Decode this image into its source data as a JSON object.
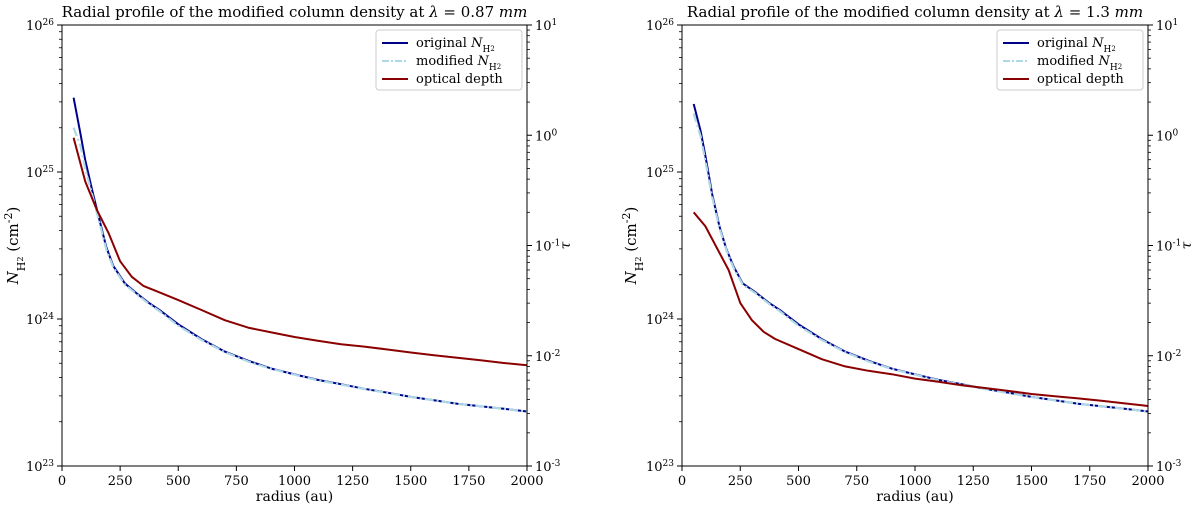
{
  "chart_data": [
    {
      "type": "line",
      "title": "Radial profile of the modified column density at λ = 0.87 mm",
      "title_prefix": "Radial profile of the modified column density at ",
      "title_lambda": "λ",
      "title_eq": " = 0.87 ",
      "title_unit": "mm",
      "xlabel": "radius (au)",
      "ylabel_left": "N_H2 (cm^-2)",
      "ylabel_right": "τ",
      "xlim": [
        0,
        2000
      ],
      "xticks": [
        0,
        250,
        500,
        750,
        1000,
        1250,
        1500,
        1750,
        2000
      ],
      "ylim_left": [
        1e+23,
        1e+26
      ],
      "ylim_right": [
        0.001,
        10
      ],
      "yticks_left": [
        "10^23",
        "10^24",
        "10^25",
        "10^26"
      ],
      "yticks_right": [
        "10^-3",
        "10^-2",
        "10^-1",
        "10^0",
        "10^1"
      ],
      "yscale": "log",
      "legend_position": "top-right",
      "legend": [
        "original N_H2",
        "modified N_H2",
        "optical depth"
      ],
      "series": [
        {
          "name": "original N_H2",
          "axis": "left",
          "color": "#00008b",
          "style": "solid",
          "x": [
            50,
            80,
            100,
            130,
            160,
            190,
            220,
            270,
            320,
            370,
            420,
            500,
            600,
            700,
            800,
            900,
            1000,
            1100,
            1200,
            1300,
            1400,
            1500,
            1600,
            1700,
            1800,
            1900,
            2000
          ],
          "y": [
            3.2e+25,
            1.8e+25,
            1.2e+25,
            7.5e+24,
            4.8e+24,
            3.1e+24,
            2.3e+24,
            1.75e+24,
            1.5e+24,
            1.3e+24,
            1.15e+24,
            9.2e+23,
            7.3e+23,
            6e+23,
            5.2e+23,
            4.6e+23,
            4.2e+23,
            3.85e+23,
            3.6e+23,
            3.35e+23,
            3.15e+23,
            2.95e+23,
            2.8e+23,
            2.65e+23,
            2.55e+23,
            2.45e+23,
            2.35e+23
          ]
        },
        {
          "name": "modified N_H2",
          "axis": "left",
          "color": "#add8e6",
          "style": "dashdot",
          "x": [
            50,
            80,
            100,
            130,
            160,
            190,
            220,
            270,
            320,
            370,
            420,
            500,
            600,
            700,
            800,
            900,
            1000,
            1100,
            1200,
            1300,
            1400,
            1500,
            1600,
            1700,
            1800,
            1900,
            2000
          ],
          "y": [
            2e+25,
            1.5e+25,
            1.05e+25,
            7e+24,
            4.6e+24,
            3e+24,
            2.25e+24,
            1.72e+24,
            1.48e+24,
            1.28e+24,
            1.13e+24,
            9e+23,
            7.2e+23,
            5.95e+23,
            5.15e+23,
            4.58e+23,
            4.18e+23,
            3.83e+23,
            3.58e+23,
            3.34e+23,
            3.14e+23,
            2.95e+23,
            2.8e+23,
            2.65e+23,
            2.55e+23,
            2.45e+23,
            2.35e+23
          ]
        },
        {
          "name": "optical depth",
          "axis": "right",
          "color": "#8b0000",
          "style": "solid",
          "x": [
            50,
            100,
            150,
            200,
            250,
            300,
            350,
            400,
            500,
            600,
            700,
            800,
            900,
            1000,
            1100,
            1200,
            1300,
            1400,
            1500,
            1600,
            1700,
            1800,
            1900,
            2000
          ],
          "y": [
            0.95,
            0.38,
            0.21,
            0.13,
            0.072,
            0.052,
            0.043,
            0.039,
            0.032,
            0.026,
            0.021,
            0.018,
            0.0163,
            0.0148,
            0.0137,
            0.0127,
            0.0121,
            0.0114,
            0.0107,
            0.0101,
            0.0096,
            0.0091,
            0.0086,
            0.0082
          ]
        }
      ]
    },
    {
      "type": "line",
      "title": "Radial profile of the modified column density at λ = 1.3 mm",
      "title_prefix": "Radial profile of the modified column density at ",
      "title_lambda": "λ",
      "title_eq": " = 1.3 ",
      "title_unit": "mm",
      "xlabel": "radius (au)",
      "ylabel_left": "N_H2 (cm^-2)",
      "ylabel_right": "τ",
      "xlim": [
        0,
        2000
      ],
      "xticks": [
        0,
        250,
        500,
        750,
        1000,
        1250,
        1500,
        1750,
        2000
      ],
      "ylim_left": [
        1e+23,
        1e+26
      ],
      "ylim_right": [
        0.001,
        10
      ],
      "yticks_left": [
        "10^23",
        "10^24",
        "10^25",
        "10^26"
      ],
      "yticks_right": [
        "10^-3",
        "10^-2",
        "10^-1",
        "10^0",
        "10^1"
      ],
      "yscale": "log",
      "legend_position": "top-right",
      "legend": [
        "original N_H2",
        "modified N_H2",
        "optical depth"
      ],
      "series": [
        {
          "name": "original N_H2",
          "axis": "left",
          "color": "#00008b",
          "style": "solid",
          "x": [
            50,
            80,
            100,
            130,
            160,
            190,
            220,
            260,
            320,
            370,
            420,
            500,
            600,
            700,
            800,
            900,
            1000,
            1100,
            1200,
            1300,
            1400,
            1500,
            1600,
            1700,
            1800,
            1900,
            2000
          ],
          "y": [
            2.9e+25,
            1.9e+25,
            1.3e+25,
            7e+24,
            4.3e+24,
            3e+24,
            2.3e+24,
            1.75e+24,
            1.5e+24,
            1.3e+24,
            1.15e+24,
            9.2e+23,
            7.3e+23,
            6e+23,
            5.2e+23,
            4.6e+23,
            4.2e+23,
            3.85e+23,
            3.6e+23,
            3.35e+23,
            3.15e+23,
            2.95e+23,
            2.8e+23,
            2.65e+23,
            2.55e+23,
            2.45e+23,
            2.35e+23
          ]
        },
        {
          "name": "modified N_H2",
          "axis": "left",
          "color": "#add8e6",
          "style": "dashdot",
          "x": [
            50,
            80,
            100,
            130,
            160,
            190,
            220,
            260,
            320,
            370,
            420,
            500,
            600,
            700,
            800,
            900,
            1000,
            1100,
            1200,
            1300,
            1400,
            1500,
            1600,
            1700,
            1800,
            1900,
            2000
          ],
          "y": [
            2.5e+25,
            1.75e+25,
            1.2e+25,
            6.7e+24,
            4.2e+24,
            2.95e+24,
            2.25e+24,
            1.72e+24,
            1.48e+24,
            1.28e+24,
            1.13e+24,
            9e+23,
            7.2e+23,
            5.95e+23,
            5.15e+23,
            4.58e+23,
            4.18e+23,
            3.83e+23,
            3.58e+23,
            3.34e+23,
            3.14e+23,
            2.95e+23,
            2.8e+23,
            2.65e+23,
            2.55e+23,
            2.45e+23,
            2.35e+23
          ]
        },
        {
          "name": "optical depth",
          "axis": "right",
          "color": "#8b0000",
          "style": "solid",
          "x": [
            50,
            100,
            150,
            200,
            250,
            300,
            350,
            400,
            500,
            600,
            700,
            800,
            900,
            1000,
            1100,
            1200,
            1300,
            1400,
            1500,
            1600,
            1700,
            1800,
            1900,
            2000
          ],
          "y": [
            0.2,
            0.15,
            0.095,
            0.06,
            0.03,
            0.021,
            0.0165,
            0.0142,
            0.0115,
            0.0093,
            0.008,
            0.0073,
            0.0068,
            0.0062,
            0.0058,
            0.0054,
            0.0051,
            0.0048,
            0.0045,
            0.0043,
            0.0041,
            0.0039,
            0.0037,
            0.0035
          ]
        }
      ]
    }
  ]
}
